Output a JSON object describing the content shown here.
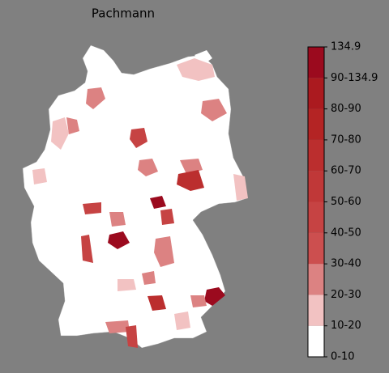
{
  "title": "Pachmann",
  "colorbar": {
    "labels": [
      "0-10",
      "10-20",
      "20-30",
      "30-40",
      "40-50",
      "50-60",
      "60-70",
      "70-80",
      "80-90",
      "90-134.9",
      "134.9"
    ],
    "colors": [
      "#ffffff",
      "#f2c2c2",
      "#dc8282",
      "#cc4f4f",
      "#c64343",
      "#c03838",
      "#bb2e2e",
      "#b42424",
      "#ab1a1f",
      "#9b0a1e"
    ]
  }
}
